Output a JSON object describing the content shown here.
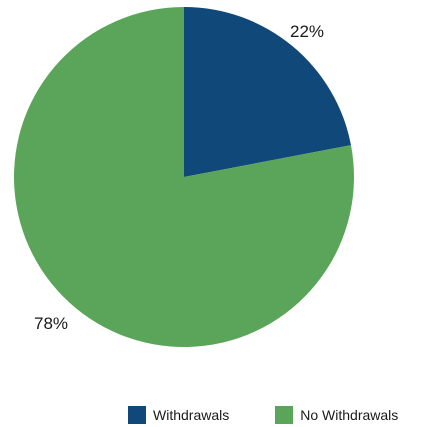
{
  "chart_data": {
    "type": "pie",
    "title": "",
    "categories": [
      "Withdrawals",
      "No Withdrawals"
    ],
    "values": [
      22,
      78
    ],
    "value_labels": [
      "22%",
      "78%"
    ],
    "colors": [
      "#0f4879",
      "#5aa55a"
    ],
    "start_angle_deg": 0,
    "direction": "clockwise",
    "legend_position": "bottom-right"
  }
}
